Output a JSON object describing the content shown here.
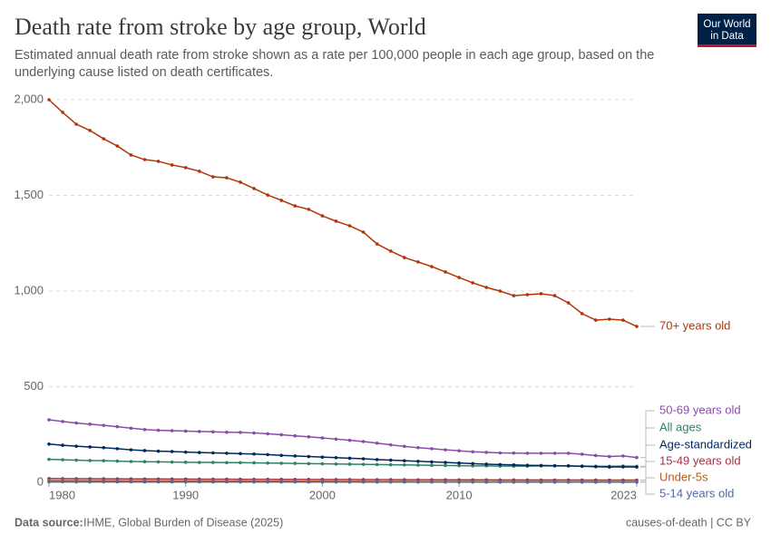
{
  "chart_data": {
    "type": "line",
    "title": "Death rate from stroke by age group, World",
    "subtitle": [
      "Estimated annual death rate from stroke shown as a rate per 100,000 people in each age group, based on the",
      "underlying cause listed on death certificates."
    ],
    "logo": [
      "Our World",
      "in Data"
    ],
    "source_label": "Data source:",
    "source": "IHME, Global Burden of Disease (2025)",
    "footer_right": "causes-of-death | CC BY",
    "x": [
      1980,
      1981,
      1982,
      1983,
      1984,
      1985,
      1986,
      1987,
      1988,
      1989,
      1990,
      1991,
      1992,
      1993,
      1994,
      1995,
      1996,
      1997,
      1998,
      1999,
      2000,
      2001,
      2002,
      2003,
      2004,
      2005,
      2006,
      2007,
      2008,
      2009,
      2010,
      2011,
      2012,
      2013,
      2014,
      2015,
      2016,
      2017,
      2018,
      2019,
      2020,
      2021,
      2022,
      2023
    ],
    "xlim": [
      1980,
      2023
    ],
    "xticks": [
      1980,
      1990,
      2000,
      2010,
      2023
    ],
    "ylim": [
      0,
      2000
    ],
    "yticks": [
      0,
      500,
      {
        "value": 1000,
        "label": "1,000"
      },
      {
        "value": 1500,
        "label": "1,500"
      },
      {
        "value": 2000,
        "label": "2,000"
      }
    ],
    "grid": true,
    "series": [
      {
        "name": "70+ years old",
        "color": "#b13507",
        "values": [
          2000,
          1934,
          1872,
          1839,
          1796,
          1758,
          1711,
          1687,
          1678,
          1659,
          1645,
          1626,
          1597,
          1592,
          1569,
          1536,
          1502,
          1474,
          1445,
          1427,
          1393,
          1365,
          1341,
          1308,
          1246,
          1209,
          1175,
          1152,
          1128,
          1100,
          1071,
          1043,
          1019,
          1000,
          976,
          981,
          986,
          976,
          938,
          882,
          848,
          853,
          848,
          815
        ]
      },
      {
        "name": "50-69 years old",
        "color": "#8c4bab",
        "values": [
          327,
          318,
          310,
          304,
          298,
          291,
          283,
          276,
          272,
          270,
          268,
          266,
          264,
          262,
          261,
          258,
          254,
          249,
          243,
          238,
          232,
          226,
          220,
          213,
          205,
          196,
          188,
          181,
          176,
          170,
          165,
          160,
          157,
          154,
          153,
          152,
          152,
          152,
          152,
          147,
          140,
          135,
          138,
          130
        ]
      },
      {
        "name": "All ages",
        "color": "#2c8465",
        "values": [
          120,
          118,
          116,
          114,
          113,
          111,
          109,
          108,
          107,
          106,
          105,
          104,
          104,
          103,
          103,
          102,
          101,
          100,
          99,
          98,
          97,
          96,
          95,
          94,
          93,
          92,
          91,
          90,
          89,
          88,
          87,
          86,
          86,
          85,
          85,
          85,
          86,
          86,
          86,
          85,
          84,
          84,
          85,
          84
        ]
      },
      {
        "name": "Age-standardized",
        "color": "#00295b",
        "values": [
          200,
          194,
          189,
          185,
          181,
          176,
          170,
          166,
          163,
          161,
          158,
          156,
          154,
          152,
          150,
          148,
          145,
          141,
          138,
          135,
          132,
          129,
          126,
          123,
          119,
          116,
          113,
          110,
          107,
          104,
          101,
          98,
          95,
          93,
          91,
          89,
          88,
          87,
          86,
          84,
          82,
          80,
          81,
          80
        ]
      },
      {
        "name": "15-49 years old",
        "color": "#a2334c",
        "values": [
          20,
          19.5,
          19,
          18.8,
          18.5,
          18.2,
          18,
          17.8,
          17.5,
          17.3,
          17,
          16.8,
          16.6,
          16.4,
          16.2,
          16,
          15.8,
          15.6,
          15.4,
          15.2,
          15,
          14.8,
          14.6,
          14.4,
          14.2,
          14,
          13.8,
          13.6,
          13.4,
          13.2,
          13,
          12.9,
          12.8,
          12.7,
          12.6,
          12.5,
          12.4,
          12.3,
          12.2,
          12.1,
          12,
          11.9,
          11.9,
          11.8
        ]
      },
      {
        "name": "Under-5s",
        "color": "#be5915",
        "values": [
          10,
          9.7,
          9.4,
          9.1,
          8.9,
          8.7,
          8.5,
          8.3,
          8.1,
          7.9,
          7.7,
          7.5,
          7.3,
          7.1,
          6.9,
          6.7,
          6.5,
          6.3,
          6.1,
          5.9,
          5.7,
          5.5,
          5.3,
          5.1,
          4.9,
          4.7,
          4.5,
          4.3,
          4.2,
          4.1,
          4,
          3.9,
          3.8,
          3.7,
          3.6,
          3.5,
          3.4,
          3.3,
          3.2,
          3.1,
          3,
          2.9,
          2.9,
          2.8
        ]
      },
      {
        "name": "5-14 years old",
        "color": "#4c6a9c",
        "values": [
          3,
          2.95,
          2.9,
          2.85,
          2.8,
          2.75,
          2.7,
          2.65,
          2.6,
          2.55,
          2.5,
          2.45,
          2.4,
          2.35,
          2.3,
          2.25,
          2.2,
          2.15,
          2.1,
          2.05,
          2,
          1.95,
          1.9,
          1.85,
          1.8,
          1.75,
          1.7,
          1.65,
          1.6,
          1.55,
          1.5,
          1.5,
          1.45,
          1.45,
          1.4,
          1.4,
          1.4,
          1.35,
          1.35,
          1.3,
          1.3,
          1.3,
          1.3,
          1.25
        ]
      }
    ]
  }
}
